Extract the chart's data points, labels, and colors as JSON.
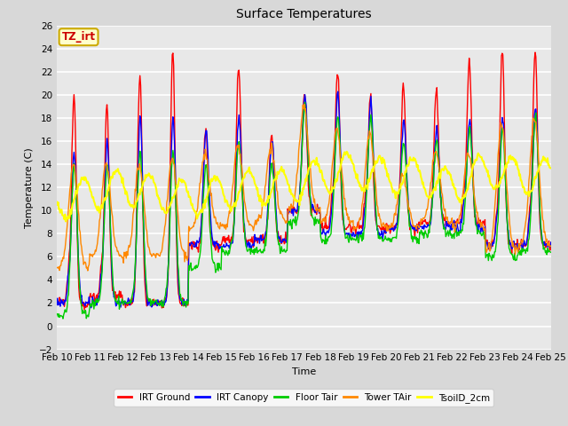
{
  "title": "Surface Temperatures",
  "xlabel": "Time",
  "ylabel": "Temperature (C)",
  "ylim": [
    -2,
    26
  ],
  "yticks": [
    -2,
    0,
    2,
    4,
    6,
    8,
    10,
    12,
    14,
    16,
    18,
    20,
    22,
    24,
    26
  ],
  "date_labels": [
    "Feb 10",
    "Feb 11",
    "Feb 12",
    "Feb 13",
    "Feb 14",
    "Feb 15",
    "Feb 16",
    "Feb 17",
    "Feb 18",
    "Feb 19",
    "Feb 20",
    "Feb 21",
    "Feb 22",
    "Feb 23",
    "Feb 24",
    "Feb 25"
  ],
  "legend_entries": [
    "IRT Ground",
    "IRT Canopy",
    "Floor Tair",
    "Tower TAir",
    "TsoilD_2cm"
  ],
  "legend_colors": [
    "#ff0000",
    "#0000ff",
    "#00cc00",
    "#ff8800",
    "#ffff00"
  ],
  "line_widths": [
    1.0,
    1.0,
    1.0,
    1.0,
    1.5
  ],
  "annotation_text": "TZ_irt",
  "annotation_color": "#cc0000",
  "annotation_bg": "#ffffcc",
  "annotation_border": "#ccaa00",
  "bg_color": "#d8d8d8",
  "plot_bg": "#e8e8e8",
  "grid_color": "#ffffff",
  "n_points_per_day": 48
}
